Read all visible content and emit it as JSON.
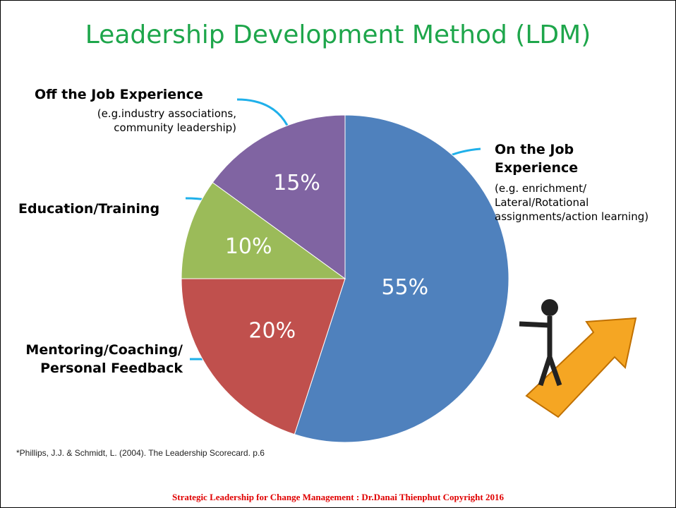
{
  "chart_data": {
    "type": "pie",
    "title": "Leadership Development Method (LDM)",
    "categories": [
      "On the Job Experience",
      "Mentoring/Coaching/ Personal Feedback",
      "Education/Training",
      "Off the Job Experience"
    ],
    "descriptions": [
      "(e.g. enrichment/ Lateral/Rotational assignments/action learning)",
      null,
      null,
      "(e.g.industry associations, community leadership)"
    ],
    "values": [
      55,
      20,
      10,
      15
    ],
    "value_labels": [
      "55%",
      "20%",
      "10%",
      "15%"
    ],
    "colors": [
      "#4f81bd",
      "#c0504d",
      "#9bbb59",
      "#8064a2"
    ],
    "footnote": "*Phillips, J.J. & Schmidt, L. (2004).  The Leadership Scorecard. p.6",
    "footer": "Strategic  Leadership for Change Management : Dr.Danai  Thienphut  Copyright  2016"
  }
}
